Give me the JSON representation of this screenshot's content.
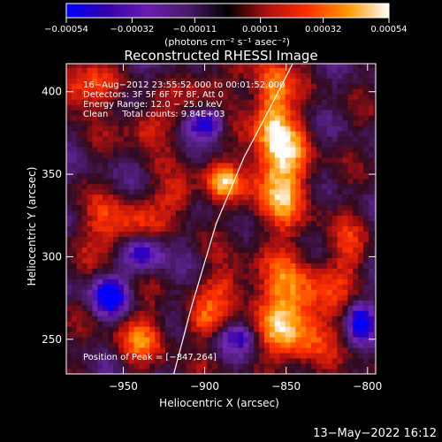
{
  "chart_data": {
    "type": "heatmap",
    "title": "Reconstructed RHESSI Image",
    "xlabel": "Heliocentric X (arcsec)",
    "ylabel": "Heliocentric Y (arcsec)",
    "xlim": [
      -985,
      -795
    ],
    "ylim": [
      229,
      417
    ],
    "x_ticks": [
      -950,
      -900,
      -850,
      -800
    ],
    "x_tick_labels": [
      "−950",
      "−900",
      "−850",
      "−800"
    ],
    "y_ticks": [
      250,
      300,
      350,
      400
    ],
    "y_tick_labels": [
      "250",
      "300",
      "350",
      "400"
    ],
    "colorbar": {
      "ticks": [
        -0.00054,
        -0.00032,
        -0.00011,
        0.00011,
        0.00032,
        0.00054
      ],
      "tick_labels": [
        "−0.00054",
        "−0.00032",
        "−0.00011",
        "0.00011",
        "0.00032",
        "0.00054"
      ],
      "range": [
        -0.00054,
        0.00054
      ],
      "units_label": "(photons cm⁻² s⁻¹ asec⁻²)",
      "colors": [
        "#0000ff",
        "#3300aa",
        "#6a1cb0",
        "#4a1a6a",
        "#000000",
        "#b01010",
        "#ff3000",
        "#ff9a00",
        "#ffffff"
      ]
    },
    "annotations": [
      "16−Aug−2012 23:55:52.000 to 00:01:52.000",
      "Detectors: 3F 5F 6F 7F 8F, Att 0",
      "Energy Range: 12.0 − 25.0 keV",
      "Clean     Total counts: 9.84E+03"
    ],
    "peak_label": "Position of Peak = [−847,264]",
    "limb_line": [
      [
        -919,
        229
      ],
      [
        -908,
        270
      ],
      [
        -893,
        320
      ],
      [
        -876,
        360
      ],
      [
        -860,
        390
      ],
      [
        -846,
        417
      ]
    ],
    "bright_regions": [
      {
        "x": -847,
        "y": 264,
        "sx": 16,
        "sy": 22,
        "amp": 1.0
      },
      {
        "x": -856,
        "y": 350,
        "sx": 14,
        "sy": 24,
        "amp": 0.95
      },
      {
        "x": -860,
        "y": 395,
        "sx": 8,
        "sy": 20,
        "amp": 0.85
      },
      {
        "x": -955,
        "y": 316,
        "sx": 14,
        "sy": 12,
        "amp": 0.7
      },
      {
        "x": -978,
        "y": 400,
        "sx": 12,
        "sy": 10,
        "amp": 0.75
      },
      {
        "x": -890,
        "y": 344,
        "sx": 8,
        "sy": 8,
        "amp": 0.7
      },
      {
        "x": -918,
        "y": 336,
        "sx": 9,
        "sy": 9,
        "amp": 0.6
      },
      {
        "x": -938,
        "y": 378,
        "sx": 10,
        "sy": 8,
        "amp": 0.6
      },
      {
        "x": -902,
        "y": 402,
        "sx": 10,
        "sy": 8,
        "amp": 0.5
      },
      {
        "x": -940,
        "y": 250,
        "sx": 12,
        "sy": 12,
        "amp": 0.55
      },
      {
        "x": -888,
        "y": 280,
        "sx": 10,
        "sy": 10,
        "amp": 0.55
      },
      {
        "x": -812,
        "y": 300,
        "sx": 8,
        "sy": 14,
        "amp": 0.45
      },
      {
        "x": -903,
        "y": 259,
        "sx": 8,
        "sy": 8,
        "amp": 0.5
      }
    ],
    "dark_regions": [
      {
        "x": -960,
        "y": 275,
        "sx": 8,
        "sy": 8,
        "amp": 1.0
      },
      {
        "x": -940,
        "y": 300,
        "sx": 8,
        "sy": 8,
        "amp": 0.9
      },
      {
        "x": -900,
        "y": 380,
        "sx": 8,
        "sy": 6,
        "amp": 0.8
      },
      {
        "x": -806,
        "y": 260,
        "sx": 6,
        "sy": 8,
        "amp": 0.9
      },
      {
        "x": -880,
        "y": 250,
        "sx": 8,
        "sy": 6,
        "amp": 0.6
      }
    ]
  },
  "footer": {
    "timestamp": "13−May−2022 16:12"
  }
}
